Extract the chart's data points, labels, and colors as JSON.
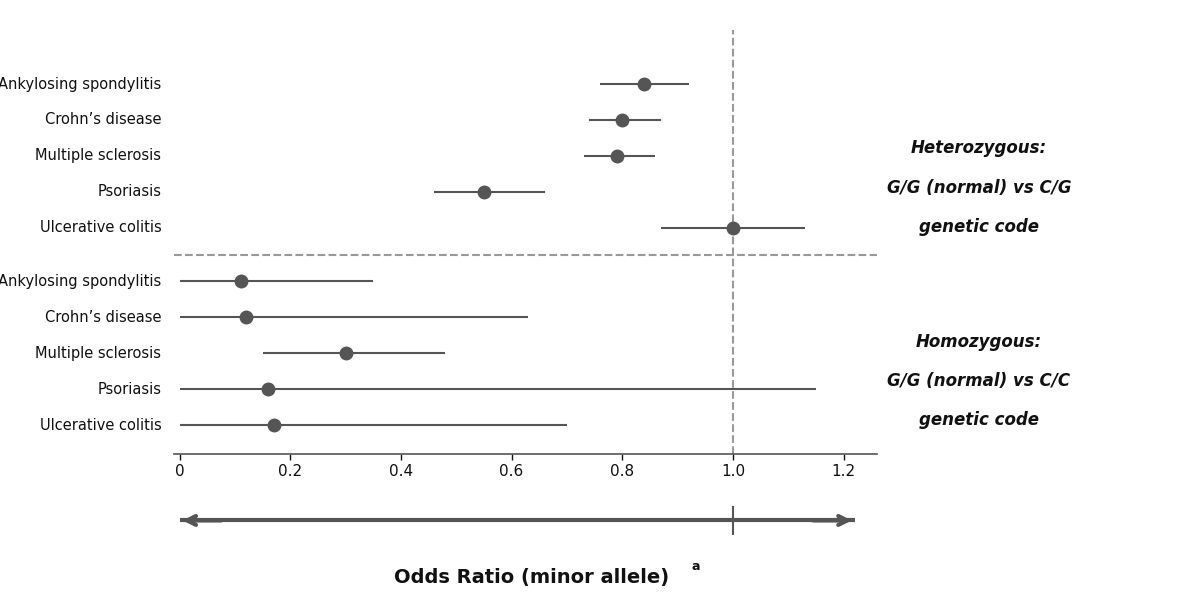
{
  "heterozygous": {
    "diseases": [
      "Ankylosing spondylitis",
      "Crohn’s disease",
      "Multiple sclerosis",
      "Psoriasis",
      "Ulcerative colitis"
    ],
    "or": [
      0.84,
      0.8,
      0.79,
      0.55,
      1.0
    ],
    "ci_low": [
      0.76,
      0.74,
      0.73,
      0.46,
      0.87
    ],
    "ci_high": [
      0.92,
      0.87,
      0.86,
      0.66,
      1.13
    ]
  },
  "homozygous": {
    "diseases": [
      "Ankylosing spondylitis",
      "Crohn’s disease",
      "Multiple sclerosis",
      "Psoriasis",
      "Ulcerative colitis"
    ],
    "or": [
      0.11,
      0.12,
      0.3,
      0.16,
      0.17
    ],
    "ci_low": [
      0.0,
      0.0,
      0.15,
      0.0,
      0.0
    ],
    "ci_high": [
      0.35,
      0.63,
      0.48,
      1.15,
      0.7
    ]
  },
  "xlim": [
    -0.01,
    1.26
  ],
  "xticks": [
    0.0,
    0.2,
    0.4,
    0.6,
    0.8,
    1.0,
    1.2
  ],
  "xticklabels": [
    "0",
    "0.2",
    "0.4",
    "0.6",
    "0.8",
    "1.0",
    "1.2"
  ],
  "dot_color": "#555555",
  "line_color": "#555555",
  "dash_color": "#999999",
  "arrow_color": "#555555",
  "spine_color": "#555555",
  "text_color": "#111111",
  "label_fontsize": 10.5,
  "tick_fontsize": 11,
  "annot_fontsize": 12,
  "xlabel_fontsize": 14,
  "dot_size": 9,
  "het_label_lines": [
    "Heterozygous:",
    "G/G (normal) vs C/G",
    "genetic code"
  ],
  "hom_label_lines": [
    "Homozygous:",
    "G/G (normal) vs C/C",
    "genetic code"
  ],
  "xlabel_main": "Odds Ratio (minor allele)",
  "xlabel_super": "a"
}
